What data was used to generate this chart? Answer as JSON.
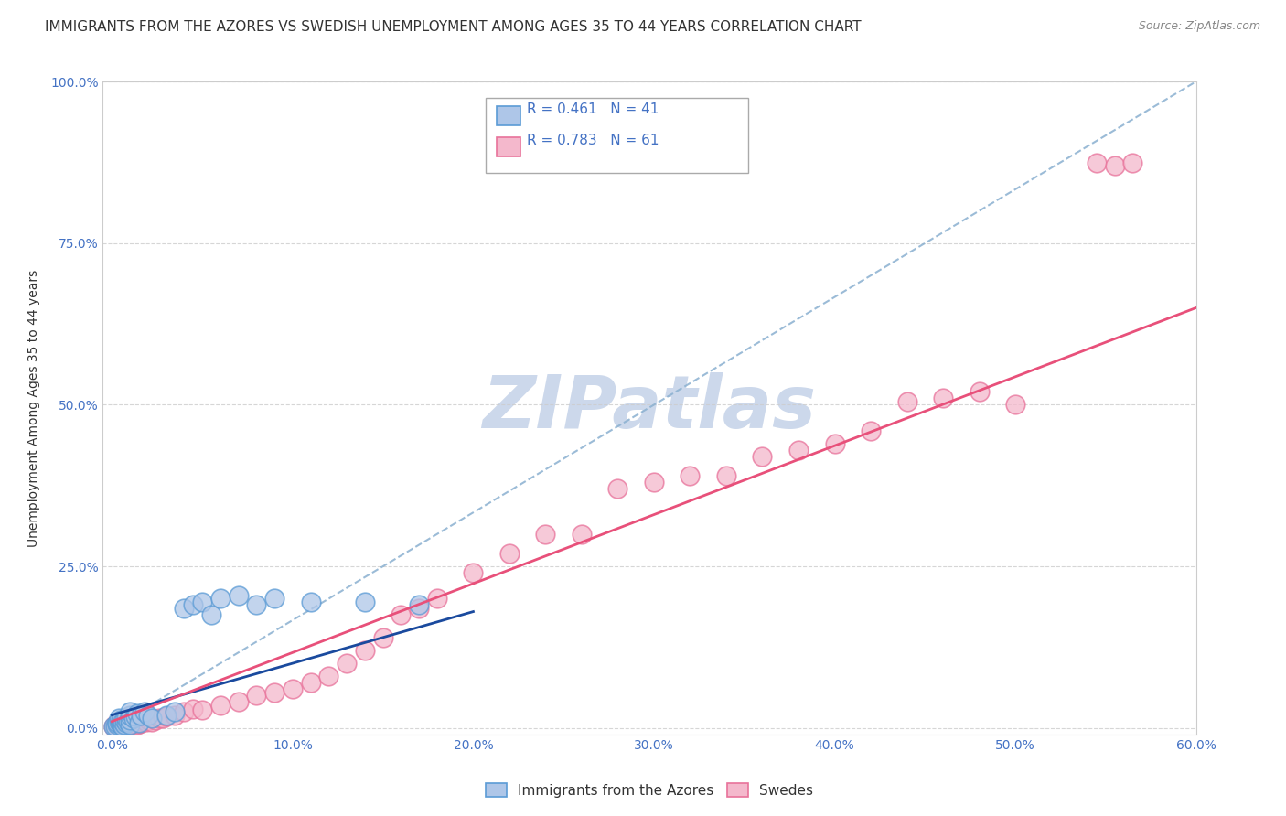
{
  "title": "IMMIGRANTS FROM THE AZORES VS SWEDISH UNEMPLOYMENT AMONG AGES 35 TO 44 YEARS CORRELATION CHART",
  "source": "Source: ZipAtlas.com",
  "ylabel": "Unemployment Among Ages 35 to 44 years",
  "xlim": [
    0.0,
    0.6
  ],
  "ylim": [
    0.0,
    1.0
  ],
  "xticks": [
    0.0,
    0.1,
    0.2,
    0.3,
    0.4,
    0.5,
    0.6
  ],
  "xticklabels": [
    "0.0%",
    "10.0%",
    "20.0%",
    "30.0%",
    "40.0%",
    "50.0%",
    "60.0%"
  ],
  "yticks": [
    0.0,
    0.25,
    0.5,
    0.75,
    1.0
  ],
  "yticklabels": [
    "0.0%",
    "25.0%",
    "50.0%",
    "75.0%",
    "100.0%"
  ],
  "blue_R": 0.461,
  "blue_N": 41,
  "pink_R": 0.783,
  "pink_N": 61,
  "blue_color": "#aec6e8",
  "blue_edge_color": "#5b9bd5",
  "pink_color": "#f4b8cc",
  "pink_edge_color": "#e8729a",
  "blue_line_color": "#1a4a9e",
  "pink_line_color": "#e8507a",
  "dash_line_color": "#8ab0d0",
  "grid_color": "#cccccc",
  "background_color": "#ffffff",
  "watermark_color": "#ccd8eb",
  "title_fontsize": 11,
  "axis_label_fontsize": 10,
  "tick_fontsize": 10,
  "legend_fontsize": 11,
  "blue_scatter_x": [
    0.001,
    0.002,
    0.003,
    0.003,
    0.004,
    0.004,
    0.005,
    0.005,
    0.005,
    0.006,
    0.006,
    0.007,
    0.007,
    0.008,
    0.008,
    0.009,
    0.01,
    0.01,
    0.01,
    0.01,
    0.012,
    0.013,
    0.014,
    0.015,
    0.016,
    0.018,
    0.02,
    0.022,
    0.03,
    0.035,
    0.04,
    0.045,
    0.05,
    0.055,
    0.06,
    0.07,
    0.08,
    0.09,
    0.11,
    0.14,
    0.17
  ],
  "blue_scatter_y": [
    0.002,
    0.003,
    0.005,
    0.008,
    0.01,
    0.015,
    0.005,
    0.008,
    0.012,
    0.003,
    0.01,
    0.005,
    0.012,
    0.008,
    0.015,
    0.01,
    0.005,
    0.012,
    0.02,
    0.025,
    0.015,
    0.018,
    0.022,
    0.008,
    0.02,
    0.025,
    0.02,
    0.015,
    0.02,
    0.025,
    0.185,
    0.19,
    0.195,
    0.175,
    0.2,
    0.205,
    0.19,
    0.2,
    0.195,
    0.195,
    0.19
  ],
  "pink_scatter_x": [
    0.001,
    0.002,
    0.003,
    0.004,
    0.005,
    0.006,
    0.007,
    0.008,
    0.009,
    0.01,
    0.011,
    0.012,
    0.013,
    0.014,
    0.015,
    0.016,
    0.017,
    0.018,
    0.019,
    0.02,
    0.022,
    0.024,
    0.026,
    0.028,
    0.03,
    0.035,
    0.04,
    0.045,
    0.05,
    0.06,
    0.07,
    0.08,
    0.09,
    0.1,
    0.11,
    0.12,
    0.13,
    0.14,
    0.15,
    0.16,
    0.17,
    0.18,
    0.2,
    0.22,
    0.24,
    0.26,
    0.28,
    0.3,
    0.32,
    0.34,
    0.36,
    0.38,
    0.4,
    0.42,
    0.44,
    0.46,
    0.48,
    0.5,
    0.545,
    0.555,
    0.565
  ],
  "pink_scatter_y": [
    0.003,
    0.005,
    0.004,
    0.003,
    0.006,
    0.004,
    0.005,
    0.003,
    0.006,
    0.005,
    0.007,
    0.006,
    0.008,
    0.005,
    0.007,
    0.008,
    0.01,
    0.012,
    0.01,
    0.013,
    0.01,
    0.012,
    0.015,
    0.015,
    0.018,
    0.02,
    0.025,
    0.03,
    0.028,
    0.035,
    0.04,
    0.05,
    0.055,
    0.06,
    0.07,
    0.08,
    0.1,
    0.12,
    0.14,
    0.175,
    0.185,
    0.2,
    0.24,
    0.27,
    0.3,
    0.3,
    0.37,
    0.38,
    0.39,
    0.39,
    0.42,
    0.43,
    0.44,
    0.46,
    0.505,
    0.51,
    0.52,
    0.5,
    0.875,
    0.87,
    0.875
  ],
  "blue_trend_x0": 0.0,
  "blue_trend_y0": 0.02,
  "blue_trend_x1": 0.2,
  "blue_trend_y1": 0.18,
  "pink_trend_x0": 0.0,
  "pink_trend_y0": 0.01,
  "pink_trend_x1": 0.6,
  "pink_trend_y1": 0.65,
  "dash_trend_x0": 0.0,
  "dash_trend_y0": 0.0,
  "dash_trend_x1": 0.6,
  "dash_trend_y1": 1.0
}
